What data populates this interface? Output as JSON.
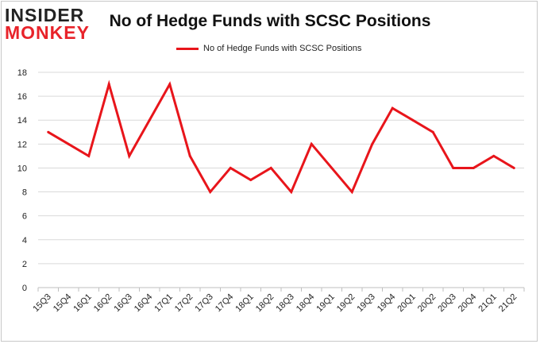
{
  "logo": {
    "line1": "INSIDER",
    "line2": "MONKEY"
  },
  "chart_data": {
    "type": "line",
    "title": "No of Hedge Funds with SCSC Positions",
    "xlabel": "",
    "ylabel": "",
    "ylim": [
      0,
      18
    ],
    "yticks": [
      0,
      2,
      4,
      6,
      8,
      10,
      12,
      14,
      16,
      18
    ],
    "grid": true,
    "legend_position": "top-center",
    "categories": [
      "15Q3",
      "15Q4",
      "16Q1",
      "16Q2",
      "16Q3",
      "16Q4",
      "17Q1",
      "17Q2",
      "17Q3",
      "17Q4",
      "18Q1",
      "18Q2",
      "18Q3",
      "18Q4",
      "19Q1",
      "19Q2",
      "19Q3",
      "19Q4",
      "20Q1",
      "20Q2",
      "20Q3",
      "20Q4",
      "21Q1",
      "21Q2"
    ],
    "series": [
      {
        "name": "No of Hedge Funds with SCSC Positions",
        "color": "#e8151b",
        "values": [
          13,
          12,
          11,
          17,
          11,
          14,
          17,
          11,
          8,
          10,
          9,
          10,
          8,
          12,
          10,
          8,
          12,
          15,
          14,
          13,
          10,
          10,
          11,
          10
        ]
      }
    ]
  }
}
